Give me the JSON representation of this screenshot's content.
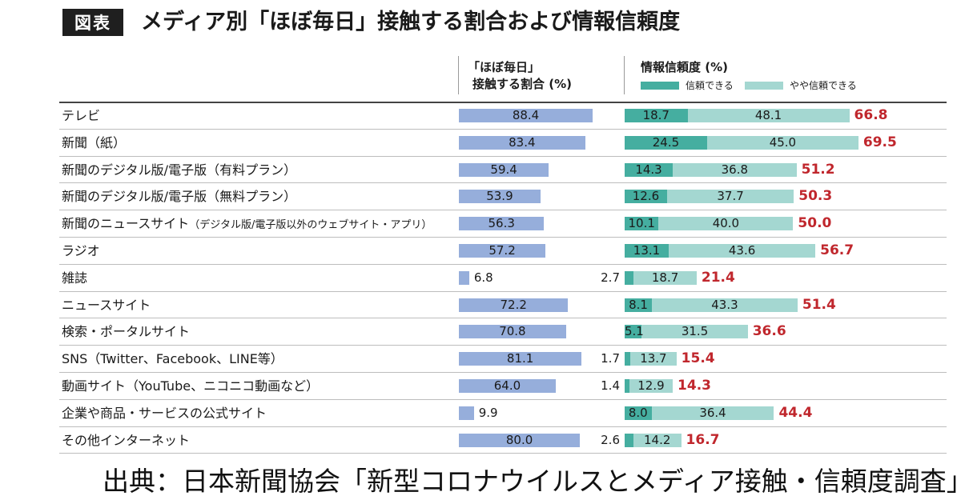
{
  "header": {
    "badge": "図表",
    "title": "メディア別「ほぼ毎日」接触する割合および情報信頼度"
  },
  "columns": {
    "contact_line1": "「ほぼ毎日」",
    "contact_line2": "接触する割合 (%)",
    "trust_title": "情報信頼度 (%)",
    "legend": [
      {
        "label": "信頼できる",
        "color": "#45aea0"
      },
      {
        "label": "やや信頼できる",
        "color": "#a4d7d1"
      }
    ]
  },
  "colors": {
    "contact_bar": "#96aedb",
    "trust": "#45aea0",
    "somewhat": "#a4d7d1",
    "total": "#c0272d"
  },
  "chart_data": [
    {
      "type": "bar",
      "title": "「ほぼ毎日」接触する割合 (%)",
      "xlim": [
        0,
        100
      ],
      "categories": [
        "テレビ",
        "新聞(紙)",
        "新聞のデジタル版/電子版(有料プラン)",
        "新聞のデジタル版/電子版(無料プラン)",
        "新聞のニュースサイト(デジタル版/電子版以外のウェブサイト・アプリ)",
        "ラジオ",
        "雑誌",
        "ニュースサイト",
        "検索・ポータルサイト",
        "SNS(Twitter、Facebook、LINE等)",
        "動画サイト(YouTube、ニコニコ動画など)",
        "企業や商品・サービスの公式サイト",
        "その他インターネット"
      ],
      "values": [
        88.4,
        83.4,
        59.4,
        53.9,
        56.3,
        57.2,
        6.8,
        72.2,
        70.8,
        81.1,
        64.0,
        9.9,
        80.0
      ]
    },
    {
      "type": "bar",
      "stacked": true,
      "title": "情報信頼度 (%)",
      "xlim": [
        0,
        100
      ],
      "categories": [
        "テレビ",
        "新聞(紙)",
        "新聞のデジタル版/電子版(有料プラン)",
        "新聞のデジタル版/電子版(無料プラン)",
        "新聞のニュースサイト(デジタル版/電子版以外のウェブサイト・アプリ)",
        "ラジオ",
        "雑誌",
        "ニュースサイト",
        "検索・ポータルサイト",
        "SNS(Twitter、Facebook、LINE等)",
        "動画サイト(YouTube、ニコニコ動画など)",
        "企業や商品・サービスの公式サイト",
        "その他インターネット"
      ],
      "series": [
        {
          "name": "信頼できる",
          "values": [
            18.7,
            24.5,
            14.3,
            12.6,
            10.1,
            13.1,
            2.7,
            8.1,
            5.1,
            1.7,
            1.4,
            8.0,
            2.6
          ]
        },
        {
          "name": "やや信頼できる",
          "values": [
            48.1,
            45.0,
            36.8,
            37.7,
            40.0,
            43.6,
            18.7,
            43.3,
            31.5,
            13.7,
            12.9,
            36.4,
            14.2
          ]
        }
      ],
      "totals": [
        66.8,
        69.5,
        51.2,
        50.3,
        50.0,
        56.7,
        21.4,
        51.4,
        36.6,
        15.4,
        14.3,
        44.4,
        16.7
      ]
    }
  ],
  "rows": [
    {
      "main": "テレビ",
      "sub": "",
      "contact": "88.4",
      "trust": "18.7",
      "somewhat": "48.1",
      "total": "66.8"
    },
    {
      "main": "新聞（紙）",
      "sub": "",
      "contact": "83.4",
      "trust": "24.5",
      "somewhat": "45.0",
      "total": "69.5"
    },
    {
      "main": "新聞のデジタル版/電子版（有料プラン）",
      "sub": "",
      "contact": "59.4",
      "trust": "14.3",
      "somewhat": "36.8",
      "total": "51.2"
    },
    {
      "main": "新聞のデジタル版/電子版（無料プラン）",
      "sub": "",
      "contact": "53.9",
      "trust": "12.6",
      "somewhat": "37.7",
      "total": "50.3"
    },
    {
      "main": "新聞のニュースサイト",
      "sub": "（デジタル版/電子版以外のウェブサイト・アプリ）",
      "contact": "56.3",
      "trust": "10.1",
      "somewhat": "40.0",
      "total": "50.0"
    },
    {
      "main": "ラジオ",
      "sub": "",
      "contact": "57.2",
      "trust": "13.1",
      "somewhat": "43.6",
      "total": "56.7"
    },
    {
      "main": "雑誌",
      "sub": "",
      "contact": "6.8",
      "trust": "2.7",
      "somewhat": "18.7",
      "total": "21.4"
    },
    {
      "main": "ニュースサイト",
      "sub": "",
      "contact": "72.2",
      "trust": "8.1",
      "somewhat": "43.3",
      "total": "51.4"
    },
    {
      "main": "検索・ポータルサイト",
      "sub": "",
      "contact": "70.8",
      "trust": "5.1",
      "somewhat": "31.5",
      "total": "36.6"
    },
    {
      "main": "SNS（Twitter、Facebook、LINE等）",
      "sub": "",
      "contact": "81.1",
      "trust": "1.7",
      "somewhat": "13.7",
      "total": "15.4"
    },
    {
      "main": "動画サイト（YouTube、ニコニコ動画など）",
      "sub": "",
      "contact": "64.0",
      "trust": "1.4",
      "somewhat": "12.9",
      "total": "14.3"
    },
    {
      "main": "企業や商品・サービスの公式サイト",
      "sub": "",
      "contact": "9.9",
      "trust": "8.0",
      "somewhat": "36.4",
      "total": "44.4"
    },
    {
      "main": "その他インターネット",
      "sub": "",
      "contact": "80.0",
      "trust": "2.6",
      "somewhat": "14.2",
      "total": "16.7"
    }
  ],
  "source": "出典：日本新聞協会「新型コロナウイルスとメディア接触・信頼度調査」"
}
